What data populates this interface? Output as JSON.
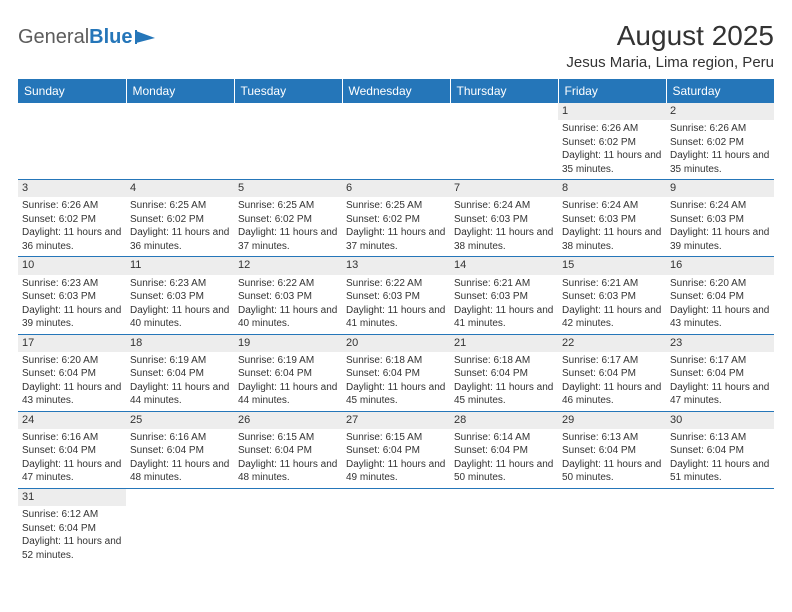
{
  "logo": {
    "part1": "General",
    "part2": "Blue"
  },
  "title": "August 2025",
  "location": "Jesus Maria, Lima region, Peru",
  "colors": {
    "header_bg": "#2576b9",
    "header_text": "#ffffff",
    "band_bg": "#ededed",
    "rule": "#2576b9",
    "text": "#333333"
  },
  "day_headers": [
    "Sunday",
    "Monday",
    "Tuesday",
    "Wednesday",
    "Thursday",
    "Friday",
    "Saturday"
  ],
  "weeks": [
    [
      null,
      null,
      null,
      null,
      null,
      {
        "n": "1",
        "sunrise": "Sunrise: 6:26 AM",
        "sunset": "Sunset: 6:02 PM",
        "daylight": "Daylight: 11 hours and 35 minutes."
      },
      {
        "n": "2",
        "sunrise": "Sunrise: 6:26 AM",
        "sunset": "Sunset: 6:02 PM",
        "daylight": "Daylight: 11 hours and 35 minutes."
      }
    ],
    [
      {
        "n": "3",
        "sunrise": "Sunrise: 6:26 AM",
        "sunset": "Sunset: 6:02 PM",
        "daylight": "Daylight: 11 hours and 36 minutes."
      },
      {
        "n": "4",
        "sunrise": "Sunrise: 6:25 AM",
        "sunset": "Sunset: 6:02 PM",
        "daylight": "Daylight: 11 hours and 36 minutes."
      },
      {
        "n": "5",
        "sunrise": "Sunrise: 6:25 AM",
        "sunset": "Sunset: 6:02 PM",
        "daylight": "Daylight: 11 hours and 37 minutes."
      },
      {
        "n": "6",
        "sunrise": "Sunrise: 6:25 AM",
        "sunset": "Sunset: 6:02 PM",
        "daylight": "Daylight: 11 hours and 37 minutes."
      },
      {
        "n": "7",
        "sunrise": "Sunrise: 6:24 AM",
        "sunset": "Sunset: 6:03 PM",
        "daylight": "Daylight: 11 hours and 38 minutes."
      },
      {
        "n": "8",
        "sunrise": "Sunrise: 6:24 AM",
        "sunset": "Sunset: 6:03 PM",
        "daylight": "Daylight: 11 hours and 38 minutes."
      },
      {
        "n": "9",
        "sunrise": "Sunrise: 6:24 AM",
        "sunset": "Sunset: 6:03 PM",
        "daylight": "Daylight: 11 hours and 39 minutes."
      }
    ],
    [
      {
        "n": "10",
        "sunrise": "Sunrise: 6:23 AM",
        "sunset": "Sunset: 6:03 PM",
        "daylight": "Daylight: 11 hours and 39 minutes."
      },
      {
        "n": "11",
        "sunrise": "Sunrise: 6:23 AM",
        "sunset": "Sunset: 6:03 PM",
        "daylight": "Daylight: 11 hours and 40 minutes."
      },
      {
        "n": "12",
        "sunrise": "Sunrise: 6:22 AM",
        "sunset": "Sunset: 6:03 PM",
        "daylight": "Daylight: 11 hours and 40 minutes."
      },
      {
        "n": "13",
        "sunrise": "Sunrise: 6:22 AM",
        "sunset": "Sunset: 6:03 PM",
        "daylight": "Daylight: 11 hours and 41 minutes."
      },
      {
        "n": "14",
        "sunrise": "Sunrise: 6:21 AM",
        "sunset": "Sunset: 6:03 PM",
        "daylight": "Daylight: 11 hours and 41 minutes."
      },
      {
        "n": "15",
        "sunrise": "Sunrise: 6:21 AM",
        "sunset": "Sunset: 6:03 PM",
        "daylight": "Daylight: 11 hours and 42 minutes."
      },
      {
        "n": "16",
        "sunrise": "Sunrise: 6:20 AM",
        "sunset": "Sunset: 6:04 PM",
        "daylight": "Daylight: 11 hours and 43 minutes."
      }
    ],
    [
      {
        "n": "17",
        "sunrise": "Sunrise: 6:20 AM",
        "sunset": "Sunset: 6:04 PM",
        "daylight": "Daylight: 11 hours and 43 minutes."
      },
      {
        "n": "18",
        "sunrise": "Sunrise: 6:19 AM",
        "sunset": "Sunset: 6:04 PM",
        "daylight": "Daylight: 11 hours and 44 minutes."
      },
      {
        "n": "19",
        "sunrise": "Sunrise: 6:19 AM",
        "sunset": "Sunset: 6:04 PM",
        "daylight": "Daylight: 11 hours and 44 minutes."
      },
      {
        "n": "20",
        "sunrise": "Sunrise: 6:18 AM",
        "sunset": "Sunset: 6:04 PM",
        "daylight": "Daylight: 11 hours and 45 minutes."
      },
      {
        "n": "21",
        "sunrise": "Sunrise: 6:18 AM",
        "sunset": "Sunset: 6:04 PM",
        "daylight": "Daylight: 11 hours and 45 minutes."
      },
      {
        "n": "22",
        "sunrise": "Sunrise: 6:17 AM",
        "sunset": "Sunset: 6:04 PM",
        "daylight": "Daylight: 11 hours and 46 minutes."
      },
      {
        "n": "23",
        "sunrise": "Sunrise: 6:17 AM",
        "sunset": "Sunset: 6:04 PM",
        "daylight": "Daylight: 11 hours and 47 minutes."
      }
    ],
    [
      {
        "n": "24",
        "sunrise": "Sunrise: 6:16 AM",
        "sunset": "Sunset: 6:04 PM",
        "daylight": "Daylight: 11 hours and 47 minutes."
      },
      {
        "n": "25",
        "sunrise": "Sunrise: 6:16 AM",
        "sunset": "Sunset: 6:04 PM",
        "daylight": "Daylight: 11 hours and 48 minutes."
      },
      {
        "n": "26",
        "sunrise": "Sunrise: 6:15 AM",
        "sunset": "Sunset: 6:04 PM",
        "daylight": "Daylight: 11 hours and 48 minutes."
      },
      {
        "n": "27",
        "sunrise": "Sunrise: 6:15 AM",
        "sunset": "Sunset: 6:04 PM",
        "daylight": "Daylight: 11 hours and 49 minutes."
      },
      {
        "n": "28",
        "sunrise": "Sunrise: 6:14 AM",
        "sunset": "Sunset: 6:04 PM",
        "daylight": "Daylight: 11 hours and 50 minutes."
      },
      {
        "n": "29",
        "sunrise": "Sunrise: 6:13 AM",
        "sunset": "Sunset: 6:04 PM",
        "daylight": "Daylight: 11 hours and 50 minutes."
      },
      {
        "n": "30",
        "sunrise": "Sunrise: 6:13 AM",
        "sunset": "Sunset: 6:04 PM",
        "daylight": "Daylight: 11 hours and 51 minutes."
      }
    ],
    [
      {
        "n": "31",
        "sunrise": "Sunrise: 6:12 AM",
        "sunset": "Sunset: 6:04 PM",
        "daylight": "Daylight: 11 hours and 52 minutes."
      },
      null,
      null,
      null,
      null,
      null,
      null
    ]
  ]
}
